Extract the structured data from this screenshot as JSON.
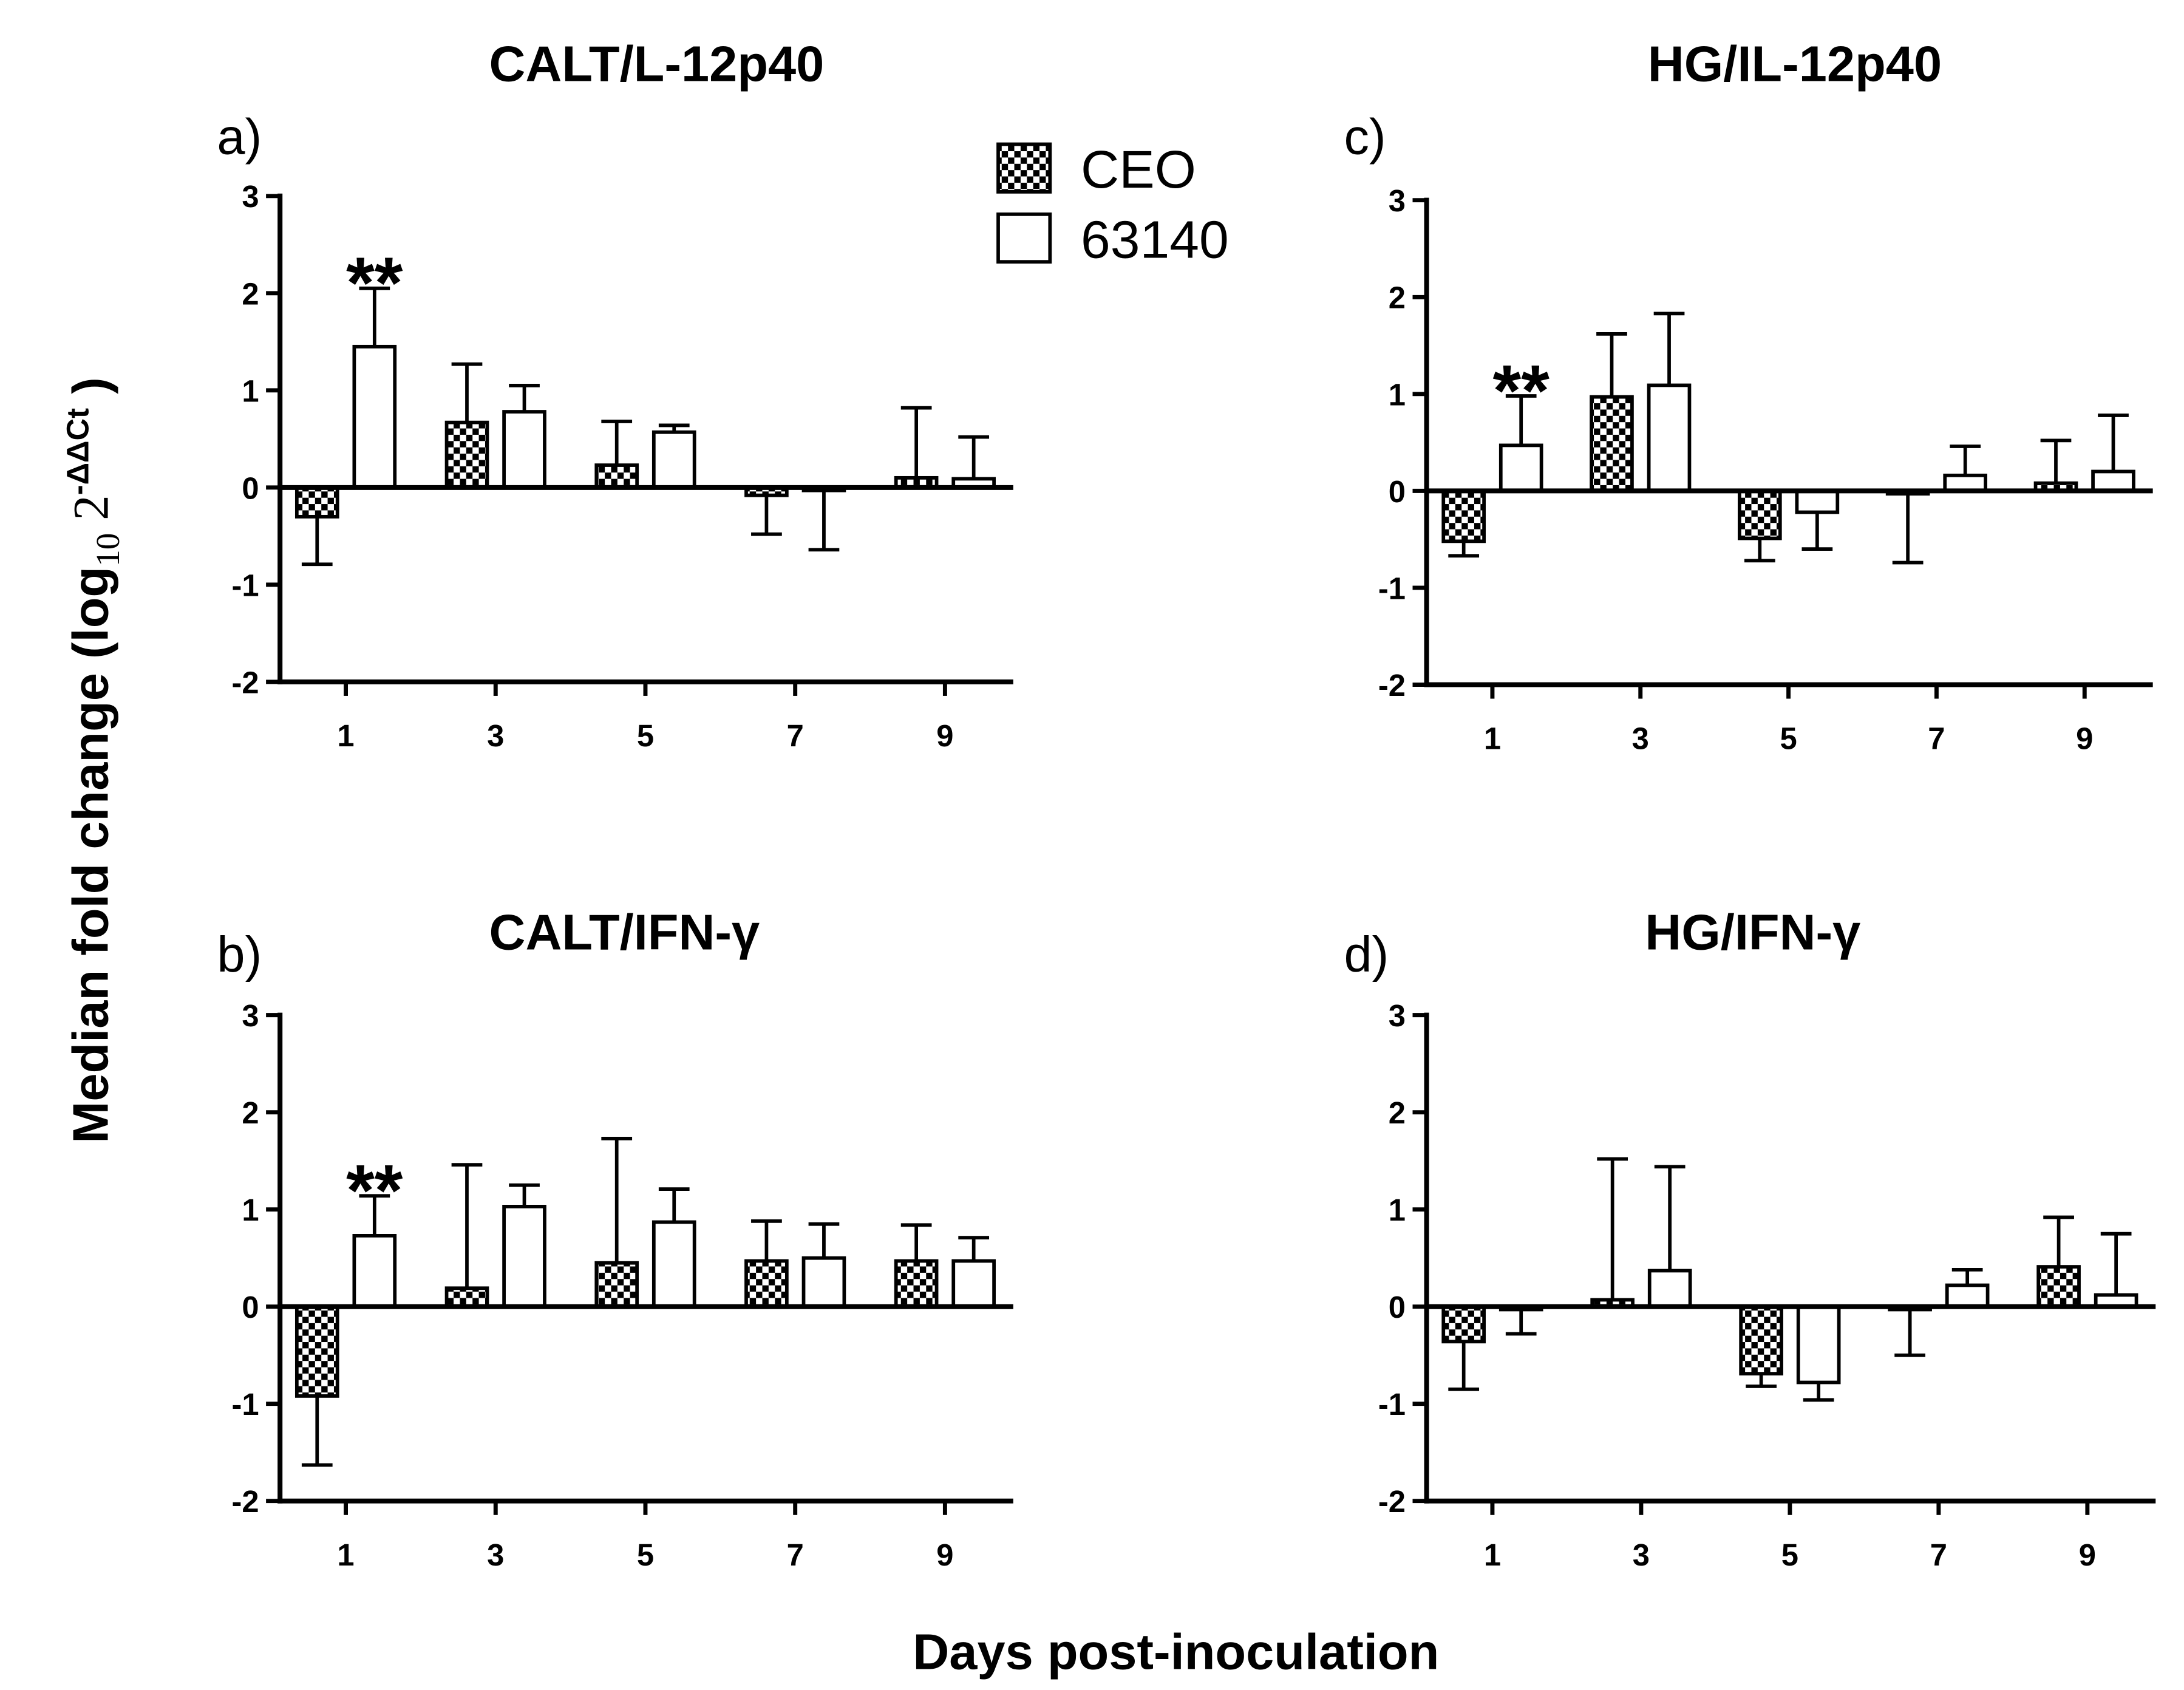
{
  "figure": {
    "x_label": "Days post-inoculation",
    "y_label": {
      "prefix": "Median fold change (",
      "log": "log",
      "subscript": "10",
      "base": " 2",
      "superscript": "-ΔΔCt",
      "close": " )"
    },
    "colors": {
      "stroke": "#000000",
      "background": "#ffffff"
    }
  },
  "legend": [
    {
      "label": "CEO",
      "fill_pattern": "checkered",
      "colors": [
        "#000000",
        "#ffffff"
      ]
    },
    {
      "label": "63140",
      "fill": "#ffffff"
    }
  ],
  "chart_data": [
    {
      "panel": "a)",
      "type": "bar",
      "title": "CALT/L-12p40",
      "categories": [
        "1",
        "3",
        "5",
        "7",
        "9"
      ],
      "ylim": [
        -2,
        3
      ],
      "yticks": [
        -2,
        -1,
        0,
        1,
        2,
        3
      ],
      "grid": false,
      "legend_placement": "top-right",
      "series": [
        {
          "name": "CEO",
          "values": [
            -0.3,
            0.67,
            0.23,
            -0.08,
            0.1
          ],
          "error_bar_end": [
            -0.79,
            1.27,
            0.68,
            -0.48,
            0.82
          ]
        },
        {
          "name": "63140",
          "values": [
            1.45,
            0.78,
            0.57,
            -0.03,
            0.09
          ],
          "error_bar_end": [
            2.05,
            1.05,
            0.64,
            -0.64,
            0.52
          ]
        }
      ],
      "annotations": [
        {
          "category": "1",
          "series": "63140",
          "text": "**"
        }
      ]
    },
    {
      "panel": "b)",
      "type": "bar",
      "title": "CALT/IFN-γ",
      "categories": [
        "1",
        "3",
        "5",
        "7",
        "9"
      ],
      "ylim": [
        -2,
        3
      ],
      "yticks": [
        -2,
        -1,
        0,
        1,
        2,
        3
      ],
      "grid": false,
      "series": [
        {
          "name": "CEO",
          "values": [
            -0.92,
            0.19,
            0.45,
            0.47,
            0.47
          ],
          "error_bar_end": [
            -1.63,
            1.46,
            1.73,
            0.88,
            0.84
          ]
        },
        {
          "name": "63140",
          "values": [
            0.73,
            1.03,
            0.87,
            0.5,
            0.47
          ],
          "error_bar_end": [
            1.14,
            1.25,
            1.21,
            0.85,
            0.71
          ]
        }
      ],
      "annotations": [
        {
          "category": "1",
          "series": "63140",
          "text": "**"
        }
      ]
    },
    {
      "panel": "c)",
      "type": "bar",
      "title": "HG/IL-12p40",
      "categories": [
        "1",
        "3",
        "5",
        "7",
        "9"
      ],
      "ylim": [
        -2,
        3
      ],
      "yticks": [
        -2,
        -1,
        0,
        1,
        2,
        3
      ],
      "grid": false,
      "series": [
        {
          "name": "CEO",
          "values": [
            -0.52,
            0.97,
            -0.49,
            -0.03,
            0.08
          ],
          "error_bar_end": [
            -0.67,
            1.62,
            -0.72,
            -0.74,
            0.52
          ]
        },
        {
          "name": "63140",
          "values": [
            0.47,
            1.09,
            -0.22,
            0.16,
            0.2
          ],
          "error_bar_end": [
            0.98,
            1.83,
            -0.6,
            0.46,
            0.78
          ]
        }
      ],
      "annotations": [
        {
          "category": "1",
          "series": "63140",
          "text": "**"
        }
      ]
    },
    {
      "panel": "d)",
      "type": "bar",
      "title": "HG/IFN-γ",
      "categories": [
        "1",
        "3",
        "5",
        "7",
        "9"
      ],
      "ylim": [
        -2,
        3
      ],
      "yticks": [
        -2,
        -1,
        0,
        1,
        2,
        3
      ],
      "grid": false,
      "series": [
        {
          "name": "CEO",
          "values": [
            -0.36,
            0.07,
            -0.69,
            -0.03,
            0.41
          ],
          "error_bar_end": [
            -0.85,
            1.52,
            -0.82,
            -0.5,
            0.92
          ]
        },
        {
          "name": "63140",
          "values": [
            -0.03,
            0.37,
            -0.78,
            0.22,
            0.12
          ],
          "error_bar_end": [
            -0.28,
            1.44,
            -0.96,
            0.38,
            0.75
          ]
        }
      ],
      "annotations": []
    }
  ]
}
